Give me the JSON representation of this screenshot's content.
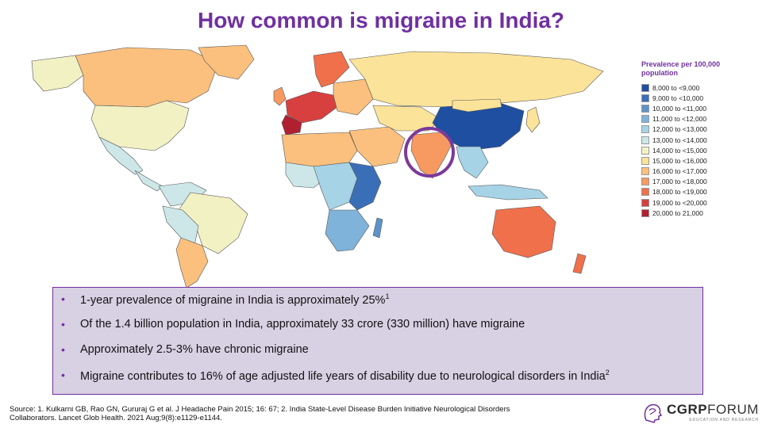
{
  "title": "How common is migraine in India?",
  "legend": {
    "title_line1": "Prevalence per 100,000",
    "title_line2": "population",
    "items": [
      {
        "label": "8,000 to <9,000",
        "color": "#1f4fa0"
      },
      {
        "label": "9,000 to <10,000",
        "color": "#3a6fb8"
      },
      {
        "label": "10,000 to <11,000",
        "color": "#5d93c8"
      },
      {
        "label": "11,000 to <12,000",
        "color": "#7fb3d9"
      },
      {
        "label": "12,000 to <13,000",
        "color": "#a6d3e6"
      },
      {
        "label": "13,000 to <14,000",
        "color": "#cde7e8"
      },
      {
        "label": "14,000 to <15,000",
        "color": "#f2f1c4"
      },
      {
        "label": "15,000 to <16,000",
        "color": "#fbe39a"
      },
      {
        "label": "16,000 to <17,000",
        "color": "#fbc07e"
      },
      {
        "label": "17,000 to <18,000",
        "color": "#f79a62"
      },
      {
        "label": "18,000 to <19,000",
        "color": "#f0704c"
      },
      {
        "label": "19,000 to <20,000",
        "color": "#d84040"
      },
      {
        "label": "20,000 to 21,000",
        "color": "#b02030"
      }
    ]
  },
  "bullets": [
    {
      "text": "1-year prevalence of migraine in India is approximately 25%",
      "sup": "1"
    },
    {
      "text": "Of the 1.4 billion population in India, approximately 33 crore (330 million) have migraine",
      "sup": ""
    },
    {
      "text": "Approximately 2.5-3% have chronic migraine",
      "sup": ""
    },
    {
      "text": "Migraine contributes to 16% of age adjusted life years of disability due to neurological disorders in India",
      "sup": "2"
    }
  ],
  "source": {
    "line1": "Source: 1. Kulkarni GB, Rao GN, Gururaj G et al. J Headache Pain 2015; 16: 67;  2. India State-Level Disease Burden Initiative Neurological Disorders",
    "line2": "Collaborators. Lancet Glob Health. 2021 Aug;9(8):e1129-e1144."
  },
  "logo": {
    "main_bold": "CGRP",
    "main_rest": "FORUM",
    "sub": "EDUCATION AND RESEARCH"
  },
  "bullet_glyph": "•",
  "colors": {
    "accent": "#7030a0",
    "box_bg": "#d8d0e3",
    "highlight_ring": "#7a3a9a"
  }
}
